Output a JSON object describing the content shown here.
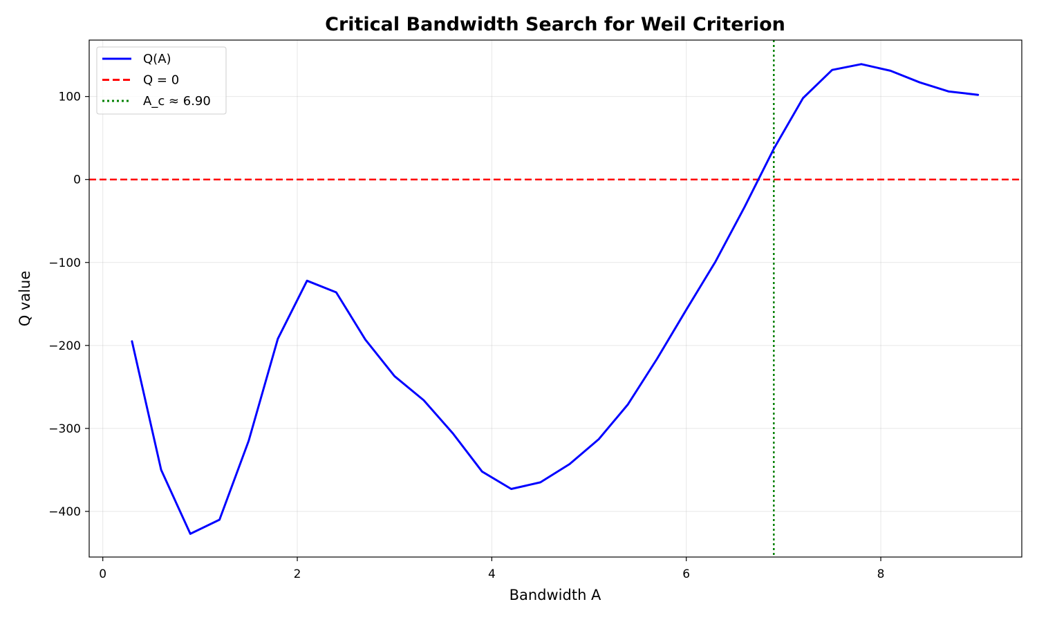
{
  "chart_data": {
    "type": "line",
    "title": "Critical Bandwidth Search for Weil Criterion",
    "xlabel": "Bandwidth A",
    "ylabel": "Q value",
    "xlim": [
      -0.14,
      9.45
    ],
    "ylim": [
      -455,
      168
    ],
    "xticks": [
      0,
      2,
      4,
      6,
      8
    ],
    "yticks": [
      100,
      0,
      -100,
      -200,
      -300,
      -400
    ],
    "xtick_labels": [
      "0",
      "2",
      "4",
      "6",
      "8"
    ],
    "ytick_labels": [
      "100",
      "0",
      "−100",
      "−200",
      "−300",
      "−400"
    ],
    "grid": true,
    "legend_position": "top-left",
    "series": [
      {
        "name": "Q(A)",
        "color": "#0000ff",
        "style": "solid",
        "x": [
          0.3,
          0.6,
          0.9,
          1.2,
          1.5,
          1.8,
          2.1,
          2.4,
          2.7,
          3.0,
          3.3,
          3.6,
          3.9,
          4.2,
          4.5,
          4.8,
          5.1,
          5.4,
          5.7,
          6.0,
          6.3,
          6.6,
          6.9,
          7.2,
          7.5,
          7.8,
          8.1,
          8.4,
          8.7,
          9.0
        ],
        "y": [
          -195,
          -350,
          -427,
          -410,
          -315,
          -192,
          -122,
          -136,
          -193,
          -237,
          -266,
          -306,
          -352,
          -373,
          -365,
          -343,
          -313,
          -271,
          -216,
          -157,
          -99,
          -33,
          37,
          98,
          132,
          139,
          131,
          117,
          106,
          102
        ]
      }
    ],
    "reference_lines": [
      {
        "name": "Q = 0",
        "orientation": "horizontal",
        "value": 0,
        "color": "#ff0000",
        "style": "dashed"
      },
      {
        "name": "A_c ≈ 6.90",
        "orientation": "vertical",
        "value": 6.9,
        "color": "#008000",
        "style": "dotted"
      }
    ]
  }
}
